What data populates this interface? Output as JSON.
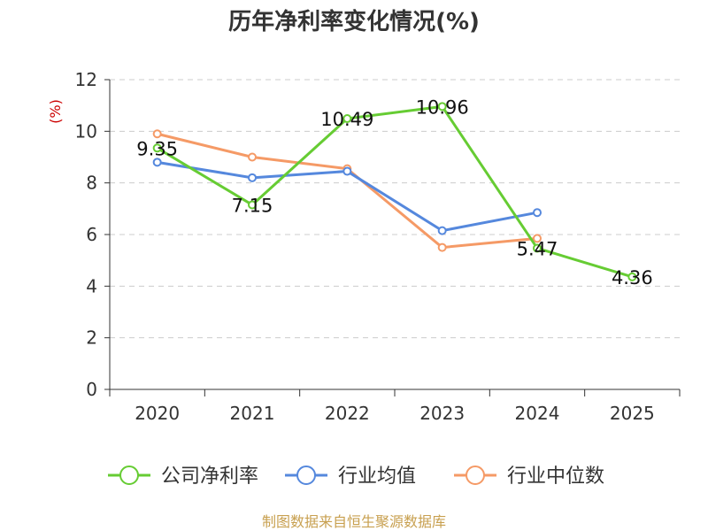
{
  "colors": {
    "background": "#ffffff",
    "grid": "#cccccc",
    "axis": "#333333",
    "ylabel": "#cc0000",
    "source": "#c8a050"
  },
  "chart_data": {
    "type": "line",
    "title": "历年净利率变化情况(%)",
    "ylabel": "(%)",
    "xlabel": "",
    "categories": [
      "2020",
      "2021",
      "2022",
      "2023",
      "2024",
      "2025"
    ],
    "ylim": [
      0,
      12
    ],
    "yticks": [
      "0",
      "2",
      "4",
      "6",
      "8",
      "10",
      "12"
    ],
    "grid": true,
    "legend_position": "bottom",
    "series": [
      {
        "name": "公司净利率",
        "color": "#66cc33",
        "values": [
          9.35,
          7.15,
          10.49,
          10.96,
          5.47,
          4.36
        ],
        "labels": [
          "9.35",
          "7.15",
          "10.49",
          "10.96",
          "5.47",
          "4.36"
        ]
      },
      {
        "name": "行业均值",
        "color": "#5588dd",
        "values": [
          8.8,
          8.2,
          8.45,
          6.15,
          6.85,
          null
        ],
        "labels": []
      },
      {
        "name": "行业中位数",
        "color": "#f59a66",
        "values": [
          9.9,
          9.0,
          8.55,
          5.5,
          5.85,
          null
        ],
        "labels": []
      }
    ],
    "source": "制图数据来自恒生聚源数据库"
  }
}
